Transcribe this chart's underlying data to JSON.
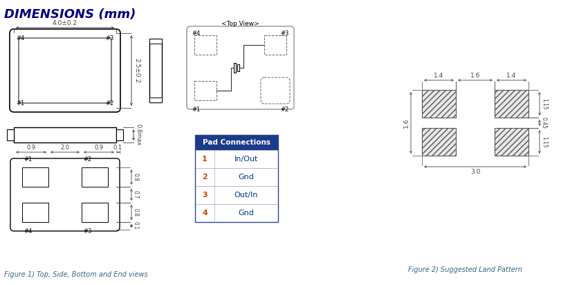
{
  "title": "DIMENSIONS (mm)",
  "title_color": "#000080",
  "title_fontsize": 13,
  "bg_color": "#ffffff",
  "fig1_caption": "Figure 1) Top, Side, Bottom and End views",
  "fig2_caption": "Figure 2) Suggested Land Pattern",
  "caption_color": "#336688",
  "table_header": "Pad Connections",
  "table_header_bg": "#1a3a8a",
  "table_header_color": "#ffffff",
  "table_rows": [
    [
      "1",
      "In/Out"
    ],
    [
      "2",
      "Gnd"
    ],
    [
      "3",
      "Out/In"
    ],
    [
      "4",
      "Gnd"
    ]
  ],
  "table_num_color": "#cc4400",
  "table_val_color": "#003399",
  "dim_line_color": "#444444",
  "drawing_color": "#000000",
  "line_color": "#333333"
}
